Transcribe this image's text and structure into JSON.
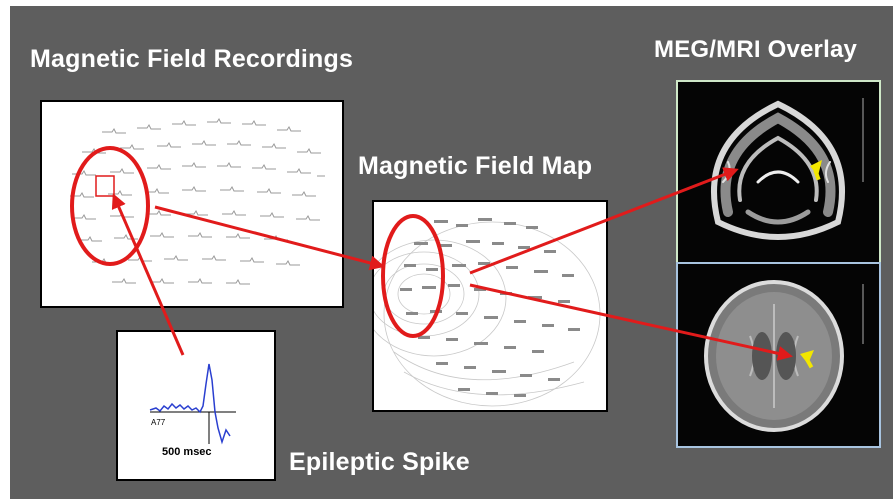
{
  "labels": {
    "recordings": "Magnetic Field Recordings",
    "map": "Magnetic Field Map",
    "overlay": "MEG/MRI Overlay",
    "spike": "Epileptic Spike"
  },
  "spike_panel": {
    "channel": "A77",
    "time_scale": "500 msec"
  },
  "colors": {
    "background": "#5e5e5e",
    "highlight": "#e11b1b",
    "marker": "#f2e600"
  },
  "icons": [
    "waveform-trace",
    "arrow",
    "yellow-marker-arrow"
  ]
}
